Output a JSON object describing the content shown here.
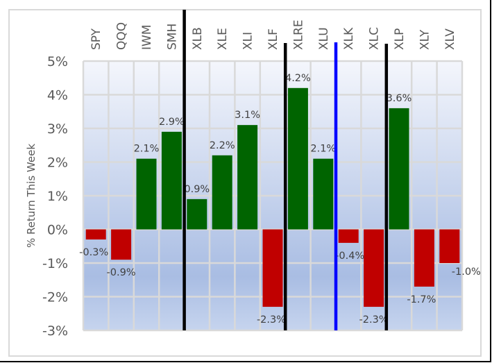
{
  "chart_data": {
    "type": "bar",
    "title": "",
    "xlabel": "",
    "ylabel": "% Return This Week",
    "ylim": [
      -3,
      5
    ],
    "yticks": [
      5,
      4,
      3,
      2,
      1,
      0,
      -1,
      -2,
      -3
    ],
    "ytick_labels": [
      "5%",
      "4%",
      "3%",
      "2%",
      "1%",
      "0%",
      "-1%",
      "-2%",
      "-3%"
    ],
    "categories": [
      "SPY",
      "QQQ",
      "IWM",
      "SMH",
      "XLB",
      "XLE",
      "XLI",
      "XLF",
      "XLRE",
      "XLU",
      "XLK",
      "XLC",
      "XLP",
      "XLY",
      "XLV"
    ],
    "values": [
      -0.3,
      -0.9,
      2.1,
      2.9,
      0.9,
      2.2,
      3.1,
      -2.3,
      4.2,
      2.1,
      -0.4,
      -2.3,
      3.6,
      -1.7,
      -1.0
    ],
    "data_labels": [
      "-0.3%",
      "-0.9%",
      "2.1%",
      "2.9%",
      "0.9%",
      "2.2%",
      "3.1%",
      "-2.3%",
      "4.2%",
      "2.1%",
      "-0.4%",
      "-2.3%",
      "3.6%",
      "-1.7%",
      "-1.0%"
    ],
    "grid": true,
    "category_axis_position": "top",
    "legend": "none",
    "separators": [
      {
        "after_category": "SMH",
        "color": "#000000"
      },
      {
        "after_category": "XLF",
        "color": "#000000"
      },
      {
        "after_category": "XLU",
        "color": "#0000ff"
      },
      {
        "after_category": "XLC",
        "color": "#000000"
      }
    ],
    "colors": {
      "positive": "#006400",
      "negative": "#c00000",
      "grid": "#d9d9d9",
      "text": "#595959",
      "plot_bg_top": "#f4f6fc",
      "plot_bg_mid": "#a9bde3",
      "plot_bg_bottom": "#c6d4ee"
    }
  }
}
